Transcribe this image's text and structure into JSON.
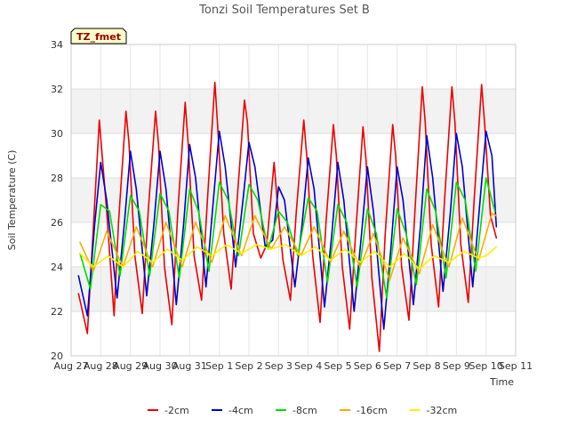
{
  "chart_data": {
    "type": "line",
    "title": "Tonzi Soil Temperatures Set B",
    "xlabel": "Time",
    "ylabel": "Soil Temperature (C)",
    "badge": "TZ_fmet",
    "ylim": [
      20,
      34
    ],
    "yticks": [
      20,
      22,
      24,
      26,
      28,
      30,
      32,
      34
    ],
    "xlim": [
      0,
      15
    ],
    "xticks": [
      {
        "v": 0,
        "label": "Aug 27"
      },
      {
        "v": 1,
        "label": "Aug 28"
      },
      {
        "v": 2,
        "label": "Aug 29"
      },
      {
        "v": 3,
        "label": "Aug 30"
      },
      {
        "v": 4,
        "label": "Aug 31"
      },
      {
        "v": 5,
        "label": "Sep 1"
      },
      {
        "v": 6,
        "label": "Sep 2"
      },
      {
        "v": 7,
        "label": "Sep 3"
      },
      {
        "v": 8,
        "label": "Sep 4"
      },
      {
        "v": 9,
        "label": "Sep 5"
      },
      {
        "v": 10,
        "label": "Sep 6"
      },
      {
        "v": 11,
        "label": "Sep 7"
      },
      {
        "v": 12,
        "label": "Sep 8"
      },
      {
        "v": 13,
        "label": "Sep 9"
      },
      {
        "v": 14,
        "label": "Sep 10"
      },
      {
        "v": 15,
        "label": "Sep 11"
      }
    ],
    "grid": true,
    "legend_position": "bottom",
    "series": [
      {
        "name": "-2cm",
        "color": "#ee0000",
        "x": [
          0.25,
          0.55,
          0.8,
          0.95,
          1.2,
          1.45,
          1.6,
          1.85,
          1.95,
          2.15,
          2.4,
          2.6,
          2.85,
          2.95,
          3.15,
          3.4,
          3.6,
          3.85,
          3.95,
          4.15,
          4.4,
          4.6,
          4.85,
          4.95,
          5.15,
          5.4,
          5.6,
          5.85,
          5.95,
          6.15,
          6.4,
          6.6,
          6.85,
          6.95,
          7.15,
          7.4,
          7.6,
          7.85,
          7.95,
          8.15,
          8.4,
          8.6,
          8.85,
          8.95,
          9.15,
          9.4,
          9.6,
          9.85,
          9.95,
          10.15,
          10.4,
          10.6,
          10.85,
          10.95,
          11.15,
          11.4,
          11.6,
          11.85,
          11.95,
          12.15,
          12.4,
          12.6,
          12.85,
          12.95,
          13.15,
          13.4,
          13.6,
          13.85,
          13.95,
          14.15,
          14.35
        ],
        "y": [
          22.8,
          21.0,
          27.0,
          30.6,
          26.5,
          21.8,
          26.0,
          31.0,
          29.6,
          24.5,
          21.9,
          26.5,
          31.0,
          29.5,
          24.0,
          21.4,
          26.5,
          31.4,
          29.5,
          24.5,
          22.5,
          27.0,
          32.3,
          30.2,
          25.5,
          23.0,
          27.0,
          31.5,
          30.5,
          25.5,
          24.4,
          25.0,
          28.7,
          27.0,
          24.3,
          22.5,
          26.5,
          30.6,
          29.0,
          24.5,
          21.5,
          26.0,
          30.4,
          29.0,
          24.0,
          21.2,
          25.5,
          30.3,
          28.8,
          23.5,
          20.2,
          25.5,
          30.4,
          29.0,
          24.0,
          21.6,
          26.5,
          32.1,
          30.5,
          25.0,
          22.2,
          27.0,
          32.1,
          30.5,
          25.0,
          22.4,
          27.0,
          32.2,
          30.5,
          26.3,
          25.3
        ]
      },
      {
        "name": "-4cm",
        "color": "#0000cc",
        "x": [
          0.25,
          0.55,
          0.8,
          1.0,
          1.2,
          1.55,
          1.8,
          2.0,
          2.2,
          2.55,
          2.8,
          3.0,
          3.2,
          3.55,
          3.8,
          4.0,
          4.2,
          4.55,
          4.8,
          5.0,
          5.2,
          5.55,
          5.8,
          6.0,
          6.2,
          6.55,
          6.8,
          7.0,
          7.2,
          7.55,
          7.8,
          8.0,
          8.2,
          8.55,
          8.8,
          9.0,
          9.2,
          9.55,
          9.8,
          10.0,
          10.2,
          10.55,
          10.8,
          11.0,
          11.2,
          11.55,
          11.8,
          12.0,
          12.2,
          12.55,
          12.8,
          13.0,
          13.2,
          13.55,
          13.8,
          14.0,
          14.2,
          14.35
        ],
        "y": [
          23.6,
          21.8,
          26.0,
          28.7,
          27.0,
          22.6,
          26.0,
          29.2,
          27.5,
          22.7,
          26.0,
          29.2,
          27.5,
          22.3,
          26.0,
          29.5,
          28.0,
          23.1,
          27.0,
          30.1,
          28.5,
          24.0,
          27.0,
          29.6,
          28.5,
          24.9,
          25.2,
          27.6,
          27.0,
          23.1,
          26.0,
          28.9,
          27.5,
          22.2,
          25.5,
          28.7,
          27.0,
          22.0,
          25.5,
          28.5,
          26.5,
          21.2,
          25.0,
          28.5,
          27.0,
          22.3,
          26.0,
          29.9,
          28.0,
          22.9,
          26.5,
          30.0,
          28.5,
          23.1,
          27.0,
          30.1,
          29.0,
          25.8
        ]
      },
      {
        "name": "-8cm",
        "color": "#00dd00",
        "x": [
          0.3,
          0.65,
          1.0,
          1.3,
          1.65,
          2.0,
          2.3,
          2.65,
          3.0,
          3.3,
          3.65,
          4.0,
          4.3,
          4.65,
          5.0,
          5.3,
          5.65,
          6.0,
          6.3,
          6.65,
          7.0,
          7.3,
          7.65,
          8.0,
          8.3,
          8.65,
          9.0,
          9.3,
          9.65,
          10.0,
          10.3,
          10.65,
          11.0,
          11.3,
          11.65,
          12.0,
          12.3,
          12.65,
          13.0,
          13.3,
          13.65,
          14.0,
          14.3
        ],
        "y": [
          24.6,
          23.0,
          26.8,
          26.5,
          23.6,
          27.2,
          26.5,
          23.6,
          27.3,
          26.5,
          23.5,
          27.5,
          26.5,
          23.8,
          27.8,
          27.0,
          24.5,
          27.7,
          27.0,
          24.8,
          26.5,
          26.0,
          24.5,
          27.1,
          26.5,
          23.3,
          26.8,
          26.0,
          23.1,
          26.6,
          25.5,
          22.6,
          26.6,
          25.5,
          23.2,
          27.5,
          26.5,
          23.5,
          27.8,
          27.0,
          23.8,
          28.0,
          26.5
        ]
      },
      {
        "name": "-16cm",
        "color": "#ffaa00",
        "x": [
          0.3,
          0.75,
          1.2,
          1.75,
          2.2,
          2.75,
          3.2,
          3.75,
          4.2,
          4.75,
          5.2,
          5.75,
          6.2,
          6.75,
          7.2,
          7.75,
          8.2,
          8.75,
          9.2,
          9.75,
          10.2,
          10.75,
          11.2,
          11.75,
          12.2,
          12.75,
          13.2,
          13.75,
          14.2,
          14.35
        ],
        "y": [
          25.1,
          23.8,
          25.6,
          24.0,
          25.8,
          24.0,
          26.0,
          24.0,
          26.0,
          24.2,
          26.3,
          24.5,
          26.3,
          24.8,
          25.8,
          24.5,
          25.8,
          24.2,
          25.6,
          24.0,
          25.5,
          23.4,
          25.3,
          23.7,
          25.9,
          24.0,
          26.2,
          24.3,
          26.4,
          26.3
        ]
      },
      {
        "name": "-32cm",
        "color": "#ffee00",
        "x": [
          0.3,
          0.75,
          1.25,
          1.75,
          2.25,
          2.75,
          3.25,
          3.75,
          4.25,
          4.75,
          5.25,
          5.75,
          6.25,
          6.75,
          7.25,
          7.75,
          8.25,
          8.75,
          9.25,
          9.75,
          10.25,
          10.75,
          11.25,
          11.75,
          12.25,
          12.75,
          13.25,
          13.75,
          14.0,
          14.35
        ],
        "y": [
          24.6,
          24.0,
          24.5,
          24.0,
          24.7,
          24.2,
          24.8,
          24.3,
          24.9,
          24.5,
          25.0,
          24.6,
          25.0,
          24.8,
          25.0,
          24.5,
          24.9,
          24.3,
          24.8,
          24.2,
          24.7,
          24.0,
          24.6,
          23.9,
          24.5,
          24.2,
          24.7,
          24.4,
          24.5,
          24.9
        ]
      }
    ]
  }
}
